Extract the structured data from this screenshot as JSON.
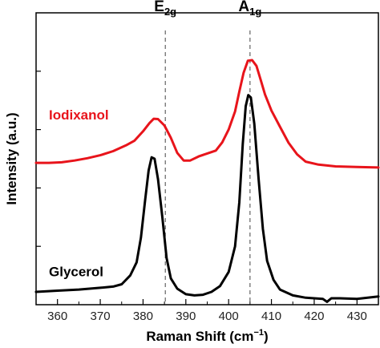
{
  "chart_data": {
    "type": "line",
    "xlabel": "Raman Shift (cm",
    "xlabel_sup": "−1",
    "xlabel_end": ")",
    "ylabel": "Intensity (a.u.)",
    "xlim": [
      355,
      435
    ],
    "ylim": [
      0,
      1
    ],
    "x_ticks": [
      360,
      370,
      380,
      390,
      400,
      410,
      420,
      430
    ],
    "x_tick_labels": [
      "360",
      "370",
      "380",
      "390",
      "400",
      "410",
      "420",
      "430"
    ],
    "x_minor_ticks": [
      355,
      365,
      375,
      385,
      395,
      405,
      415,
      425,
      435
    ],
    "y_ticks": [
      0.2,
      0.4,
      0.6,
      0.8
    ],
    "grid": false,
    "annotations": [
      {
        "base": "E",
        "sub": "2g",
        "x": 385.2
      },
      {
        "base": "A",
        "sub": "1g",
        "x": 405.0
      }
    ],
    "series": [
      {
        "name": "Iodixanol",
        "color": "#e8141b",
        "label_x": 358,
        "label_y": 0.635,
        "points": [
          [
            355,
            0.486
          ],
          [
            358,
            0.486
          ],
          [
            361,
            0.488
          ],
          [
            364,
            0.494
          ],
          [
            367,
            0.502
          ],
          [
            370,
            0.512
          ],
          [
            373,
            0.526
          ],
          [
            376,
            0.546
          ],
          [
            378,
            0.562
          ],
          [
            380,
            0.594
          ],
          [
            381.5,
            0.622
          ],
          [
            382.5,
            0.637
          ],
          [
            383.5,
            0.636
          ],
          [
            385,
            0.614
          ],
          [
            386.5,
            0.572
          ],
          [
            388,
            0.52
          ],
          [
            389.5,
            0.494
          ],
          [
            391,
            0.494
          ],
          [
            393,
            0.508
          ],
          [
            395,
            0.518
          ],
          [
            397,
            0.528
          ],
          [
            398.5,
            0.556
          ],
          [
            400,
            0.6
          ],
          [
            401.5,
            0.662
          ],
          [
            402.5,
            0.73
          ],
          [
            403.5,
            0.795
          ],
          [
            404.5,
            0.836
          ],
          [
            405.5,
            0.838
          ],
          [
            406.5,
            0.818
          ],
          [
            407.5,
            0.77
          ],
          [
            408.5,
            0.72
          ],
          [
            410,
            0.665
          ],
          [
            412,
            0.61
          ],
          [
            414,
            0.555
          ],
          [
            416,
            0.515
          ],
          [
            418,
            0.49
          ],
          [
            421,
            0.48
          ],
          [
            425,
            0.474
          ],
          [
            430,
            0.472
          ],
          [
            435,
            0.47
          ]
        ]
      },
      {
        "name": "Glycerol",
        "color": "#000000",
        "label_x": 358,
        "label_y": 0.098,
        "points": [
          [
            355,
            0.044
          ],
          [
            360,
            0.048
          ],
          [
            365,
            0.052
          ],
          [
            370,
            0.058
          ],
          [
            373,
            0.062
          ],
          [
            375,
            0.07
          ],
          [
            377,
            0.1
          ],
          [
            378.5,
            0.145
          ],
          [
            379.5,
            0.23
          ],
          [
            380.5,
            0.36
          ],
          [
            381.3,
            0.46
          ],
          [
            382,
            0.505
          ],
          [
            382.7,
            0.5
          ],
          [
            383.5,
            0.43
          ],
          [
            384.5,
            0.3
          ],
          [
            385.5,
            0.16
          ],
          [
            386.5,
            0.09
          ],
          [
            388,
            0.055
          ],
          [
            390,
            0.036
          ],
          [
            392,
            0.032
          ],
          [
            394,
            0.034
          ],
          [
            396,
            0.044
          ],
          [
            398,
            0.064
          ],
          [
            400,
            0.112
          ],
          [
            401.5,
            0.2
          ],
          [
            402.5,
            0.35
          ],
          [
            403.3,
            0.55
          ],
          [
            404,
            0.68
          ],
          [
            404.6,
            0.718
          ],
          [
            405.2,
            0.71
          ],
          [
            406,
            0.62
          ],
          [
            407,
            0.43
          ],
          [
            408,
            0.26
          ],
          [
            409,
            0.15
          ],
          [
            410.5,
            0.085
          ],
          [
            412,
            0.052
          ],
          [
            415,
            0.032
          ],
          [
            418,
            0.024
          ],
          [
            420,
            0.022
          ],
          [
            422,
            0.02
          ],
          [
            423,
            0.01
          ],
          [
            424,
            0.022
          ],
          [
            426,
            0.022
          ],
          [
            430,
            0.02
          ],
          [
            435,
            0.028
          ]
        ]
      }
    ]
  }
}
